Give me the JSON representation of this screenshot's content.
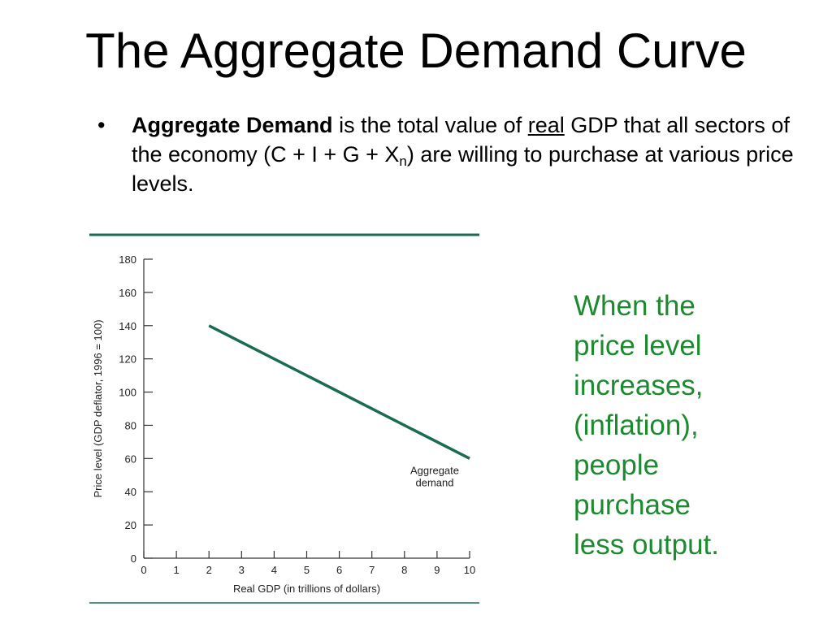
{
  "slide": {
    "title": "The Aggregate Demand Curve",
    "bullet": {
      "bold": "Aggregate Demand",
      "part1": " is the total value of ",
      "underlined": "real",
      "part2": " GDP that all sectors of the economy (C + I + G + X",
      "subscript": "n",
      "part3": ") are willing to purchase at various price levels."
    },
    "side_note_lines": [
      "When the",
      "price level",
      "increases,",
      "(inflation),",
      "people",
      "purchase",
      "less output."
    ]
  },
  "colors": {
    "curve": "#1b6b52",
    "rule": "#1b6b52",
    "side_note": "#1c8a2e",
    "axis": "#333333"
  },
  "chart_data": {
    "type": "line",
    "xlabel": "Real GDP (in trillions of dollars)",
    "ylabel": "Price level (GDP deflator, 1996 = 100)",
    "xlim": [
      0,
      10
    ],
    "ylim": [
      0,
      180
    ],
    "x_ticks": [
      0,
      1,
      2,
      3,
      4,
      5,
      6,
      7,
      8,
      9,
      10
    ],
    "y_ticks": [
      0,
      20,
      40,
      60,
      80,
      100,
      120,
      140,
      160,
      180
    ],
    "grid": false,
    "series": [
      {
        "name": "Aggregate demand",
        "label_lines": [
          "Aggregate",
          "demand"
        ],
        "x": [
          2,
          10
        ],
        "y": [
          140,
          60
        ]
      }
    ]
  }
}
